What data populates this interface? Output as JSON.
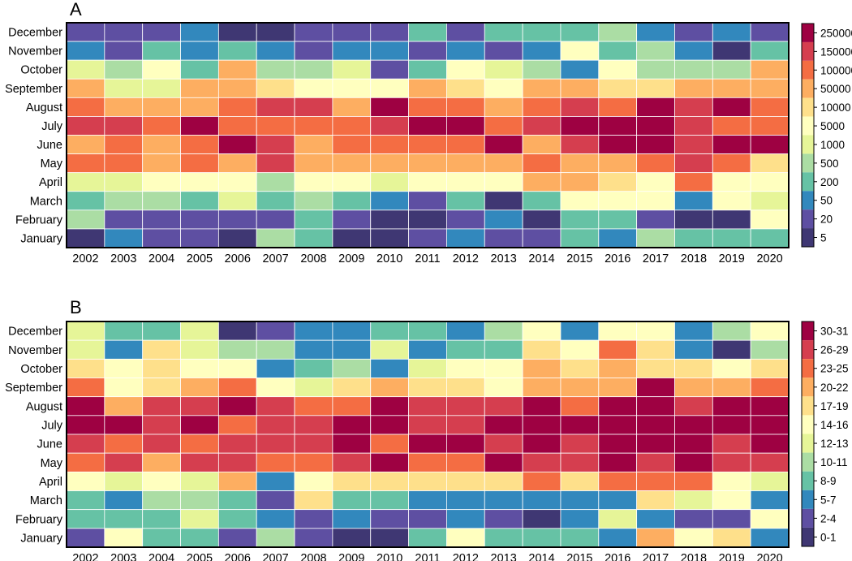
{
  "chart_data": [
    {
      "type": "heatmap",
      "title": "A",
      "x": [
        "2002",
        "2003",
        "2004",
        "2005",
        "2006",
        "2007",
        "2008",
        "2009",
        "2010",
        "2011",
        "2012",
        "2013",
        "2014",
        "2015",
        "2016",
        "2017",
        "2018",
        "2019",
        "2020"
      ],
      "y": [
        "December",
        "November",
        "October",
        "September",
        "August",
        "July",
        "June",
        "May",
        "April",
        "March",
        "February",
        "January"
      ],
      "legend": [
        "250000",
        "150000",
        "100000",
        "50000",
        "10000",
        "5000",
        "1000",
        "500",
        "200",
        "50",
        "20",
        "5"
      ],
      "legend_colors": [
        "#9e0142",
        "#d53e4f",
        "#f46d43",
        "#fdae61",
        "#fee08b",
        "#ffffbf",
        "#e6f598",
        "#abdda4",
        "#66c2a5",
        "#3288bd",
        "#5e4fa2",
        "#3f3773"
      ],
      "values": [
        [
          10,
          10,
          10,
          9,
          11,
          11,
          10,
          10,
          10,
          8,
          10,
          8,
          8,
          8,
          7,
          9,
          10,
          9,
          10
        ],
        [
          9,
          10,
          8,
          9,
          8,
          9,
          10,
          9,
          9,
          10,
          9,
          10,
          9,
          5,
          8,
          7,
          9,
          11,
          8
        ],
        [
          6,
          7,
          5,
          8,
          3,
          7,
          7,
          6,
          10,
          8,
          5,
          6,
          7,
          9,
          5,
          7,
          7,
          7,
          3
        ],
        [
          3,
          6,
          6,
          3,
          3,
          4,
          5,
          5,
          5,
          3,
          4,
          5,
          3,
          3,
          4,
          4,
          3,
          3,
          3
        ],
        [
          2,
          3,
          3,
          3,
          2,
          1,
          1,
          3,
          0,
          2,
          2,
          3,
          2,
          1,
          2,
          0,
          1,
          0,
          2
        ],
        [
          1,
          1,
          2,
          0,
          2,
          2,
          2,
          2,
          1,
          0,
          0,
          2,
          1,
          0,
          0,
          0,
          1,
          2,
          2
        ],
        [
          3,
          2,
          3,
          2,
          0,
          1,
          3,
          2,
          2,
          2,
          2,
          0,
          3,
          1,
          0,
          0,
          1,
          0,
          0
        ],
        [
          2,
          2,
          3,
          2,
          3,
          1,
          3,
          3,
          3,
          3,
          3,
          3,
          2,
          3,
          3,
          2,
          1,
          2,
          4
        ],
        [
          6,
          6,
          5,
          5,
          5,
          7,
          5,
          5,
          6,
          5,
          5,
          5,
          3,
          3,
          4,
          5,
          2,
          5,
          5
        ],
        [
          8,
          7,
          7,
          8,
          6,
          8,
          7,
          8,
          9,
          10,
          8,
          11,
          8,
          5,
          5,
          5,
          9,
          5,
          6
        ],
        [
          7,
          10,
          10,
          10,
          10,
          10,
          8,
          10,
          11,
          11,
          10,
          9,
          11,
          8,
          8,
          10,
          11,
          11,
          5
        ],
        [
          11,
          9,
          10,
          10,
          11,
          7,
          8,
          11,
          11,
          10,
          9,
          10,
          10,
          8,
          9,
          7,
          8,
          8,
          8
        ]
      ]
    },
    {
      "type": "heatmap",
      "title": "B",
      "x": [
        "2002",
        "2003",
        "2004",
        "2005",
        "2006",
        "2007",
        "2008",
        "2009",
        "2010",
        "2011",
        "2012",
        "2013",
        "2014",
        "2015",
        "2016",
        "2017",
        "2018",
        "2019",
        "2020"
      ],
      "y": [
        "December",
        "November",
        "October",
        "September",
        "August",
        "July",
        "June",
        "May",
        "April",
        "March",
        "February",
        "January"
      ],
      "legend": [
        "30-31",
        "26-29",
        "23-25",
        "20-22",
        "17-19",
        "14-16",
        "12-13",
        "10-11",
        "8-9",
        "5-7",
        "2-4",
        "0-1"
      ],
      "legend_colors": [
        "#9e0142",
        "#d53e4f",
        "#f46d43",
        "#fdae61",
        "#fee08b",
        "#ffffbf",
        "#e6f598",
        "#abdda4",
        "#66c2a5",
        "#3288bd",
        "#5e4fa2",
        "#3f3773"
      ],
      "values": [
        [
          6,
          8,
          8,
          6,
          11,
          10,
          9,
          9,
          8,
          8,
          9,
          7,
          5,
          9,
          5,
          5,
          9,
          7,
          5
        ],
        [
          6,
          9,
          4,
          6,
          7,
          7,
          9,
          9,
          6,
          9,
          8,
          8,
          4,
          5,
          2,
          4,
          9,
          11,
          7
        ],
        [
          4,
          5,
          4,
          5,
          5,
          9,
          8,
          7,
          9,
          6,
          5,
          5,
          3,
          4,
          3,
          4,
          4,
          5,
          4
        ],
        [
          2,
          5,
          4,
          3,
          2,
          5,
          6,
          4,
          3,
          4,
          4,
          5,
          3,
          3,
          3,
          0,
          3,
          3,
          2
        ],
        [
          0,
          3,
          1,
          1,
          0,
          1,
          2,
          2,
          0,
          1,
          1,
          1,
          0,
          2,
          0,
          0,
          1,
          0,
          0
        ],
        [
          0,
          0,
          1,
          0,
          2,
          1,
          1,
          0,
          0,
          1,
          1,
          0,
          0,
          0,
          0,
          0,
          0,
          0,
          0
        ],
        [
          1,
          2,
          1,
          2,
          1,
          1,
          1,
          0,
          2,
          0,
          0,
          1,
          0,
          1,
          0,
          0,
          0,
          1,
          0
        ],
        [
          2,
          1,
          3,
          1,
          1,
          2,
          2,
          1,
          0,
          2,
          2,
          0,
          1,
          1,
          0,
          1,
          0,
          1,
          1
        ],
        [
          5,
          6,
          5,
          6,
          3,
          9,
          5,
          4,
          4,
          4,
          4,
          4,
          2,
          4,
          2,
          2,
          2,
          5,
          6
        ],
        [
          8,
          9,
          7,
          7,
          8,
          10,
          4,
          8,
          8,
          9,
          9,
          9,
          9,
          9,
          9,
          4,
          6,
          5,
          9
        ],
        [
          8,
          8,
          8,
          6,
          8,
          9,
          10,
          9,
          10,
          10,
          9,
          10,
          11,
          9,
          6,
          9,
          10,
          10,
          5
        ],
        [
          10,
          5,
          8,
          8,
          10,
          7,
          10,
          11,
          11,
          8,
          5,
          8,
          8,
          8,
          9,
          3,
          5,
          4,
          9
        ]
      ]
    }
  ]
}
